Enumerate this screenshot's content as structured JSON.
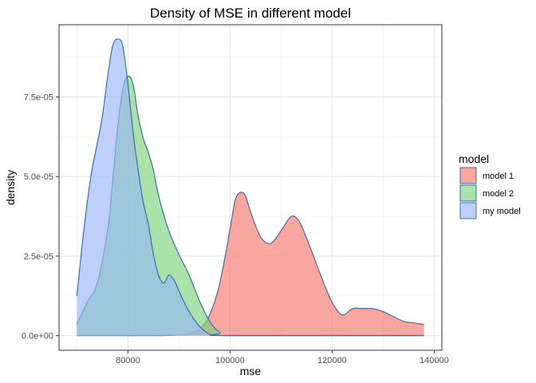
{
  "chart_data": {
    "type": "area",
    "title": "Density of MSE in different model",
    "xlabel": "mse",
    "ylabel": "density",
    "xlim": [
      66500,
      141500
    ],
    "ylim": [
      -4.6e-06,
      9.77e-05
    ],
    "x_ticks": [
      80000,
      100000,
      120000,
      140000
    ],
    "x_tick_labels": [
      "80000",
      "100000",
      "120000",
      "140000"
    ],
    "y_ticks": [
      0,
      2.5e-05,
      5e-05,
      7.5e-05
    ],
    "y_tick_labels": [
      "0.0e+00",
      "2.5e-05",
      "5.0e-05",
      "7.5e-05"
    ],
    "grid": true,
    "legend_title": "model",
    "legend_position": "right",
    "outline_color": "#3a6ea8",
    "series": [
      {
        "name": "model 1",
        "fill": "#f8766d",
        "x": [
          70000,
          85000,
          90000,
          92000,
          94000,
          96000,
          98000,
          100000,
          101000,
          102000,
          103000,
          104000,
          106000,
          108000,
          110000,
          111000,
          112000,
          113000,
          114000,
          116000,
          118000,
          120000,
          122000,
          124000,
          126000,
          128000,
          130000,
          132000,
          134000,
          136000,
          138000
        ],
        "y": [
          0,
          0,
          2e-07,
          7e-07,
          2e-06,
          6.5e-06,
          1.65e-05,
          3.35e-05,
          4.25e-05,
          4.5e-05,
          4.4e-05,
          3.9e-05,
          3.1e-05,
          2.9e-05,
          3.3e-05,
          3.55e-05,
          3.75e-05,
          3.7e-05,
          3.45e-05,
          2.65e-05,
          1.8e-05,
          1.05e-05,
          6.5e-06,
          8.5e-06,
          8.5e-06,
          8.5e-06,
          7.5e-06,
          6e-06,
          4.5e-06,
          4e-06,
          3.5e-06
        ]
      },
      {
        "name": "model 2",
        "fill": "#7cd27c",
        "x": [
          70000,
          72000,
          74000,
          76000,
          77000,
          78000,
          79000,
          80000,
          81000,
          82000,
          83000,
          84000,
          85000,
          86000,
          88000,
          90000,
          92000,
          94000,
          96000,
          98000,
          100000,
          138000
        ],
        "y": [
          3.5e-06,
          1.05e-05,
          1.65e-05,
          3.3e-05,
          4.85e-05,
          6.55e-05,
          7.75e-05,
          8.15e-05,
          7.9e-05,
          6.9e-05,
          6.2e-05,
          5.75e-05,
          5.2e-05,
          4.4e-05,
          3.3e-05,
          2.55e-05,
          1.9e-05,
          1.1e-05,
          4.5e-06,
          1e-06,
          0,
          0
        ]
      },
      {
        "name": "my model",
        "fill": "#9bb7f8",
        "x": [
          70000,
          71000,
          72000,
          73000,
          74000,
          75000,
          76000,
          77000,
          78000,
          79000,
          80000,
          81000,
          82000,
          83000,
          84000,
          85000,
          86000,
          87000,
          88000,
          89000,
          90000,
          91000,
          92000,
          93000,
          94000,
          95000,
          96000,
          97000,
          100000,
          138000
        ],
        "y": [
          1.25e-05,
          2.8e-05,
          4.15e-05,
          5.25e-05,
          6.05e-05,
          6.9e-05,
          8.1e-05,
          9.1e-05,
          9.32e-05,
          9.1e-05,
          7.9e-05,
          6.4e-05,
          5.2e-05,
          4.2e-05,
          3.5e-05,
          2.55e-05,
          1.9e-05,
          1.65e-05,
          1.9e-05,
          1.75e-05,
          1.4e-05,
          1.05e-05,
          7.5e-06,
          5e-06,
          3e-06,
          1.5e-06,
          5e-07,
          2e-07,
          0,
          0
        ]
      }
    ]
  }
}
